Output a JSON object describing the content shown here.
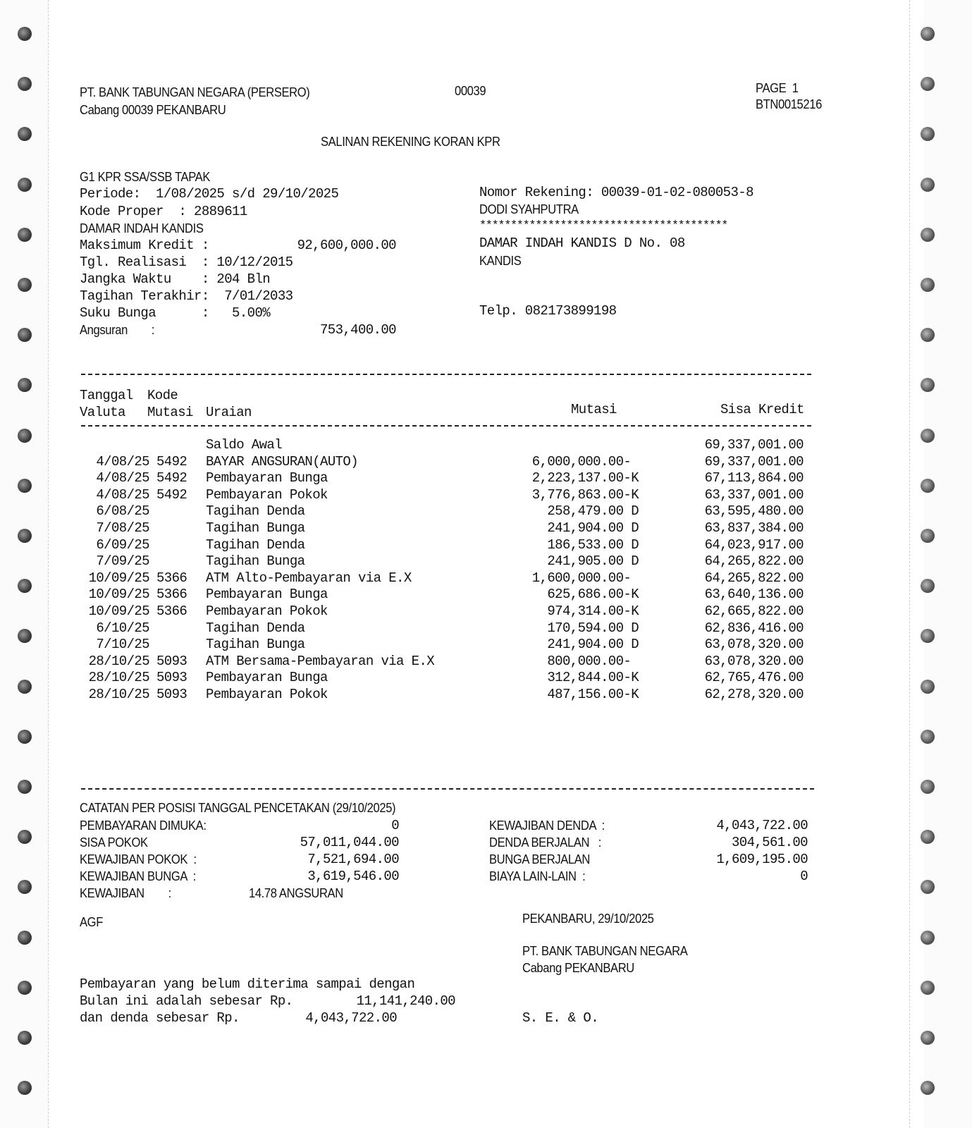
{
  "header": {
    "bank": "PT. BANK TABUNGAN NEGARA (PERSERO)",
    "branch_code": "00039",
    "branch": "Cabang 00039 PEKANBARU",
    "page": "PAGE  1",
    "doc_id": "BTN0015216",
    "title": "SALINAN REKENING KORAN KPR"
  },
  "account": {
    "product": "G1 KPR SSA/SSB TAPAK",
    "periode": "Periode:  1/08/2025 s/d 29/10/2025",
    "kode_proper": "Kode Proper  : 2889611",
    "project": "DAMAR INDAH KANDIS",
    "maks_label": "Maksimum Kredit :",
    "maks_value": "92,600,000.00",
    "tgl_realisasi": "Tgl. Realisasi  : 10/12/2015",
    "jangka_waktu": "Jangka Waktu    : 204 Bln",
    "tagihan_terakhir": "Tagihan Terakhir:  7/01/2033",
    "suku_bunga": "Suku Bunga      :   5.00%",
    "angsuran_label": "Angsuran        :",
    "angsuran_value": "753,400.00",
    "nomor_rekening": "Nomor Rekening: 00039-01-02-080053-8",
    "nama": "DODI SYAHPUTRA",
    "stars": "****************************************",
    "alamat1": "DAMAR INDAH KANDIS D No. 08",
    "alamat2": "KANDIS",
    "telp": "Telp. 082173899198"
  },
  "table": {
    "headers": {
      "tanggal": "Tanggal",
      "kode": "Kode",
      "valuta": "Valuta",
      "mutasi_kode": "Mutasi",
      "uraian": "Uraian",
      "mutasi": "Mutasi",
      "sisa": "Sisa Kredit"
    },
    "rows": [
      {
        "date": "",
        "kode": "",
        "uraian": "Saldo Awal",
        "mutasi": "",
        "sisa": "69,337,001.00"
      },
      {
        "date": "4/08/25",
        "kode": "5492",
        "uraian": "BAYAR ANGSURAN(AUTO)",
        "mutasi": "6,000,000.00- ",
        "sisa": "69,337,001.00"
      },
      {
        "date": "4/08/25",
        "kode": "5492",
        "uraian": "Pembayaran Bunga",
        "mutasi": "2,223,137.00-K",
        "sisa": "67,113,864.00"
      },
      {
        "date": "4/08/25",
        "kode": "5492",
        "uraian": "Pembayaran Pokok",
        "mutasi": "3,776,863.00-K",
        "sisa": "63,337,001.00"
      },
      {
        "date": "6/08/25",
        "kode": "",
        "uraian": "Tagihan Denda",
        "mutasi": "258,479.00 D",
        "sisa": "63,595,480.00"
      },
      {
        "date": "7/08/25",
        "kode": "",
        "uraian": "Tagihan Bunga",
        "mutasi": "241,904.00 D",
        "sisa": "63,837,384.00"
      },
      {
        "date": "6/09/25",
        "kode": "",
        "uraian": "Tagihan Denda",
        "mutasi": "186,533.00 D",
        "sisa": "64,023,917.00"
      },
      {
        "date": "7/09/25",
        "kode": "",
        "uraian": "Tagihan Bunga",
        "mutasi": "241,905.00 D",
        "sisa": "64,265,822.00"
      },
      {
        "date": "10/09/25",
        "kode": "5366",
        "uraian": "ATM Alto-Pembayaran via E.X",
        "mutasi": "1,600,000.00- ",
        "sisa": "64,265,822.00"
      },
      {
        "date": "10/09/25",
        "kode": "5366",
        "uraian": "Pembayaran Bunga",
        "mutasi": "625,686.00-K",
        "sisa": "63,640,136.00"
      },
      {
        "date": "10/09/25",
        "kode": "5366",
        "uraian": "Pembayaran Pokok",
        "mutasi": "974,314.00-K",
        "sisa": "62,665,822.00"
      },
      {
        "date": "6/10/25",
        "kode": "",
        "uraian": "Tagihan Denda",
        "mutasi": "170,594.00 D",
        "sisa": "62,836,416.00"
      },
      {
        "date": "7/10/25",
        "kode": "",
        "uraian": "Tagihan Bunga",
        "mutasi": "241,904.00 D",
        "sisa": "63,078,320.00"
      },
      {
        "date": "28/10/25",
        "kode": "5093",
        "uraian": "ATM Bersama-Pembayaran via E.X",
        "mutasi": "800,000.00- ",
        "sisa": "63,078,320.00"
      },
      {
        "date": "28/10/25",
        "kode": "5093",
        "uraian": "Pembayaran Bunga",
        "mutasi": "312,844.00-K",
        "sisa": "62,765,476.00"
      },
      {
        "date": "28/10/25",
        "kode": "5093",
        "uraian": "Pembayaran Pokok",
        "mutasi": "487,156.00-K",
        "sisa": "62,278,320.00"
      }
    ]
  },
  "summary": {
    "title": "CATATAN PER POSISI TANGGAL PENCETAKAN (29/10/2025)",
    "pembayaran_dimuka_label": "PEMBAYARAN DIMUKA:",
    "pembayaran_dimuka": "0",
    "sisa_pokok_label": "SISA POKOK",
    "sisa_pokok": "57,011,044.00",
    "kewajiban_pokok_label": "KEWAJIBAN POKOK  :",
    "kewajiban_pokok": "7,521,694.00",
    "kewajiban_bunga_label": "KEWAJIBAN BUNGA  :",
    "kewajiban_bunga": "3,619,546.00",
    "kewajiban_label": "KEWAJIBAN        :",
    "kewajiban": "14.78 ANGSURAN",
    "kewajiban_denda_label": "KEWAJIBAN DENDA  :",
    "kewajiban_denda": "4,043,722.00",
    "denda_berjalan_label": "DENDA BERJALAN   :",
    "denda_berjalan": "304,561.00",
    "bunga_berjalan_label": "BUNGA BERJALAN",
    "bunga_berjalan": "1,609,195.00",
    "biaya_lain_label": "BIAYA LAIN-LAIN  :",
    "biaya_lain": "0"
  },
  "footer": {
    "operator": "AGF",
    "place_date": "PEKANBARU, 29/10/2025",
    "bank": "PT. BANK TABUNGAN NEGARA",
    "branch": "Cabang PEKANBARU",
    "note1": "Pembayaran yang belum diterima sampai dengan",
    "note2_label": "Bulan ini adalah sebesar Rp.",
    "note2_value": "11,141,240.00",
    "note3_label": "dan denda sebesar Rp.",
    "note3_value": "4,043,722.00",
    "seo": "S. E. & O."
  }
}
